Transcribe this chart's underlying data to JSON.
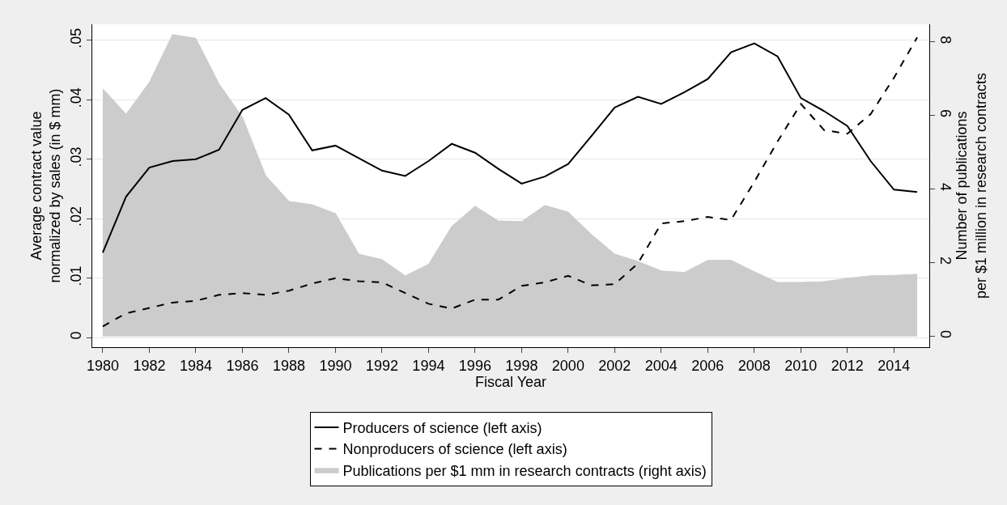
{
  "chart_data": {
    "type": "line",
    "xlabel": "Fiscal Year",
    "ylabel": "Average contract value\nnormalized by sales (in $ mm)",
    "y2label": "Number of publications\nper $1 million in research contracts",
    "x": [
      1980,
      1981,
      1982,
      1983,
      1984,
      1985,
      1986,
      1987,
      1988,
      1989,
      1990,
      1991,
      1992,
      1993,
      1994,
      1995,
      1996,
      1997,
      1998,
      1999,
      2000,
      2001,
      2002,
      2003,
      2004,
      2005,
      2006,
      2007,
      2008,
      2009,
      2010,
      2011,
      2012,
      2013,
      2014,
      2015
    ],
    "series": [
      {
        "name": "Publications per $1 mm in research contracts (right axis)",
        "type": "area",
        "axis": "y2",
        "color": "#cccccc",
        "values": [
          6.73,
          6.04,
          6.9,
          8.2,
          8.1,
          6.86,
          5.96,
          4.37,
          3.67,
          3.58,
          3.34,
          2.24,
          2.09,
          1.65,
          1.96,
          2.99,
          3.54,
          3.14,
          3.12,
          3.56,
          3.38,
          2.77,
          2.24,
          2.04,
          1.78,
          1.74,
          2.07,
          2.07,
          1.76,
          1.47,
          1.47,
          1.49,
          1.58,
          1.65,
          1.66,
          1.69
        ]
      },
      {
        "name": "Producers of science (left axis)",
        "line_style": "solid",
        "color": "#000000",
        "values": [
          0.0143,
          0.0237,
          0.0286,
          0.0297,
          0.03,
          0.0316,
          0.0383,
          0.0403,
          0.0375,
          0.0315,
          0.0323,
          0.0302,
          0.0281,
          0.0272,
          0.0297,
          0.0326,
          0.0311,
          0.0284,
          0.0259,
          0.0271,
          0.0292,
          0.0339,
          0.0387,
          0.0405,
          0.0393,
          0.0413,
          0.0435,
          0.048,
          0.0495,
          0.0473,
          0.0403,
          0.0381,
          0.0356,
          0.0297,
          0.0249,
          0.0245
        ]
      },
      {
        "name": "Nonproducers of science (left axis)",
        "line_style": "dashed",
        "color": "#000000",
        "values": [
          0.0019,
          0.0041,
          0.005,
          0.0059,
          0.0062,
          0.0072,
          0.0075,
          0.0072,
          0.0079,
          0.0091,
          0.01,
          0.0095,
          0.0093,
          0.0075,
          0.0057,
          0.0049,
          0.0064,
          0.0064,
          0.0087,
          0.0093,
          0.0104,
          0.0088,
          0.009,
          0.0125,
          0.0192,
          0.0196,
          0.0203,
          0.0198,
          0.0262,
          0.033,
          0.0393,
          0.0349,
          0.0343,
          0.0376,
          0.0437,
          0.0505
        ]
      }
    ],
    "xlim": [
      1979.55,
      2015.52
    ],
    "xticks": [
      1980,
      1982,
      1984,
      1986,
      1988,
      1990,
      1992,
      1994,
      1996,
      1998,
      2000,
      2002,
      2004,
      2006,
      2008,
      2010,
      2012,
      2014
    ],
    "ylim": [
      -0.0016,
      0.0527
    ],
    "yticks": [
      0,
      {
        "value": 0.01,
        "label": ".01"
      },
      {
        "value": 0.02,
        "label": ".02"
      },
      {
        "value": 0.03,
        "label": ".03"
      },
      {
        "value": 0.04,
        "label": ".04"
      },
      {
        "value": 0.05,
        "label": ".05"
      }
    ],
    "y2lim": [
      -0.29,
      8.48
    ],
    "y2ticks": [
      0,
      2,
      4,
      6,
      8
    ],
    "grid": "y",
    "legend": "bottom",
    "marker": "none"
  }
}
